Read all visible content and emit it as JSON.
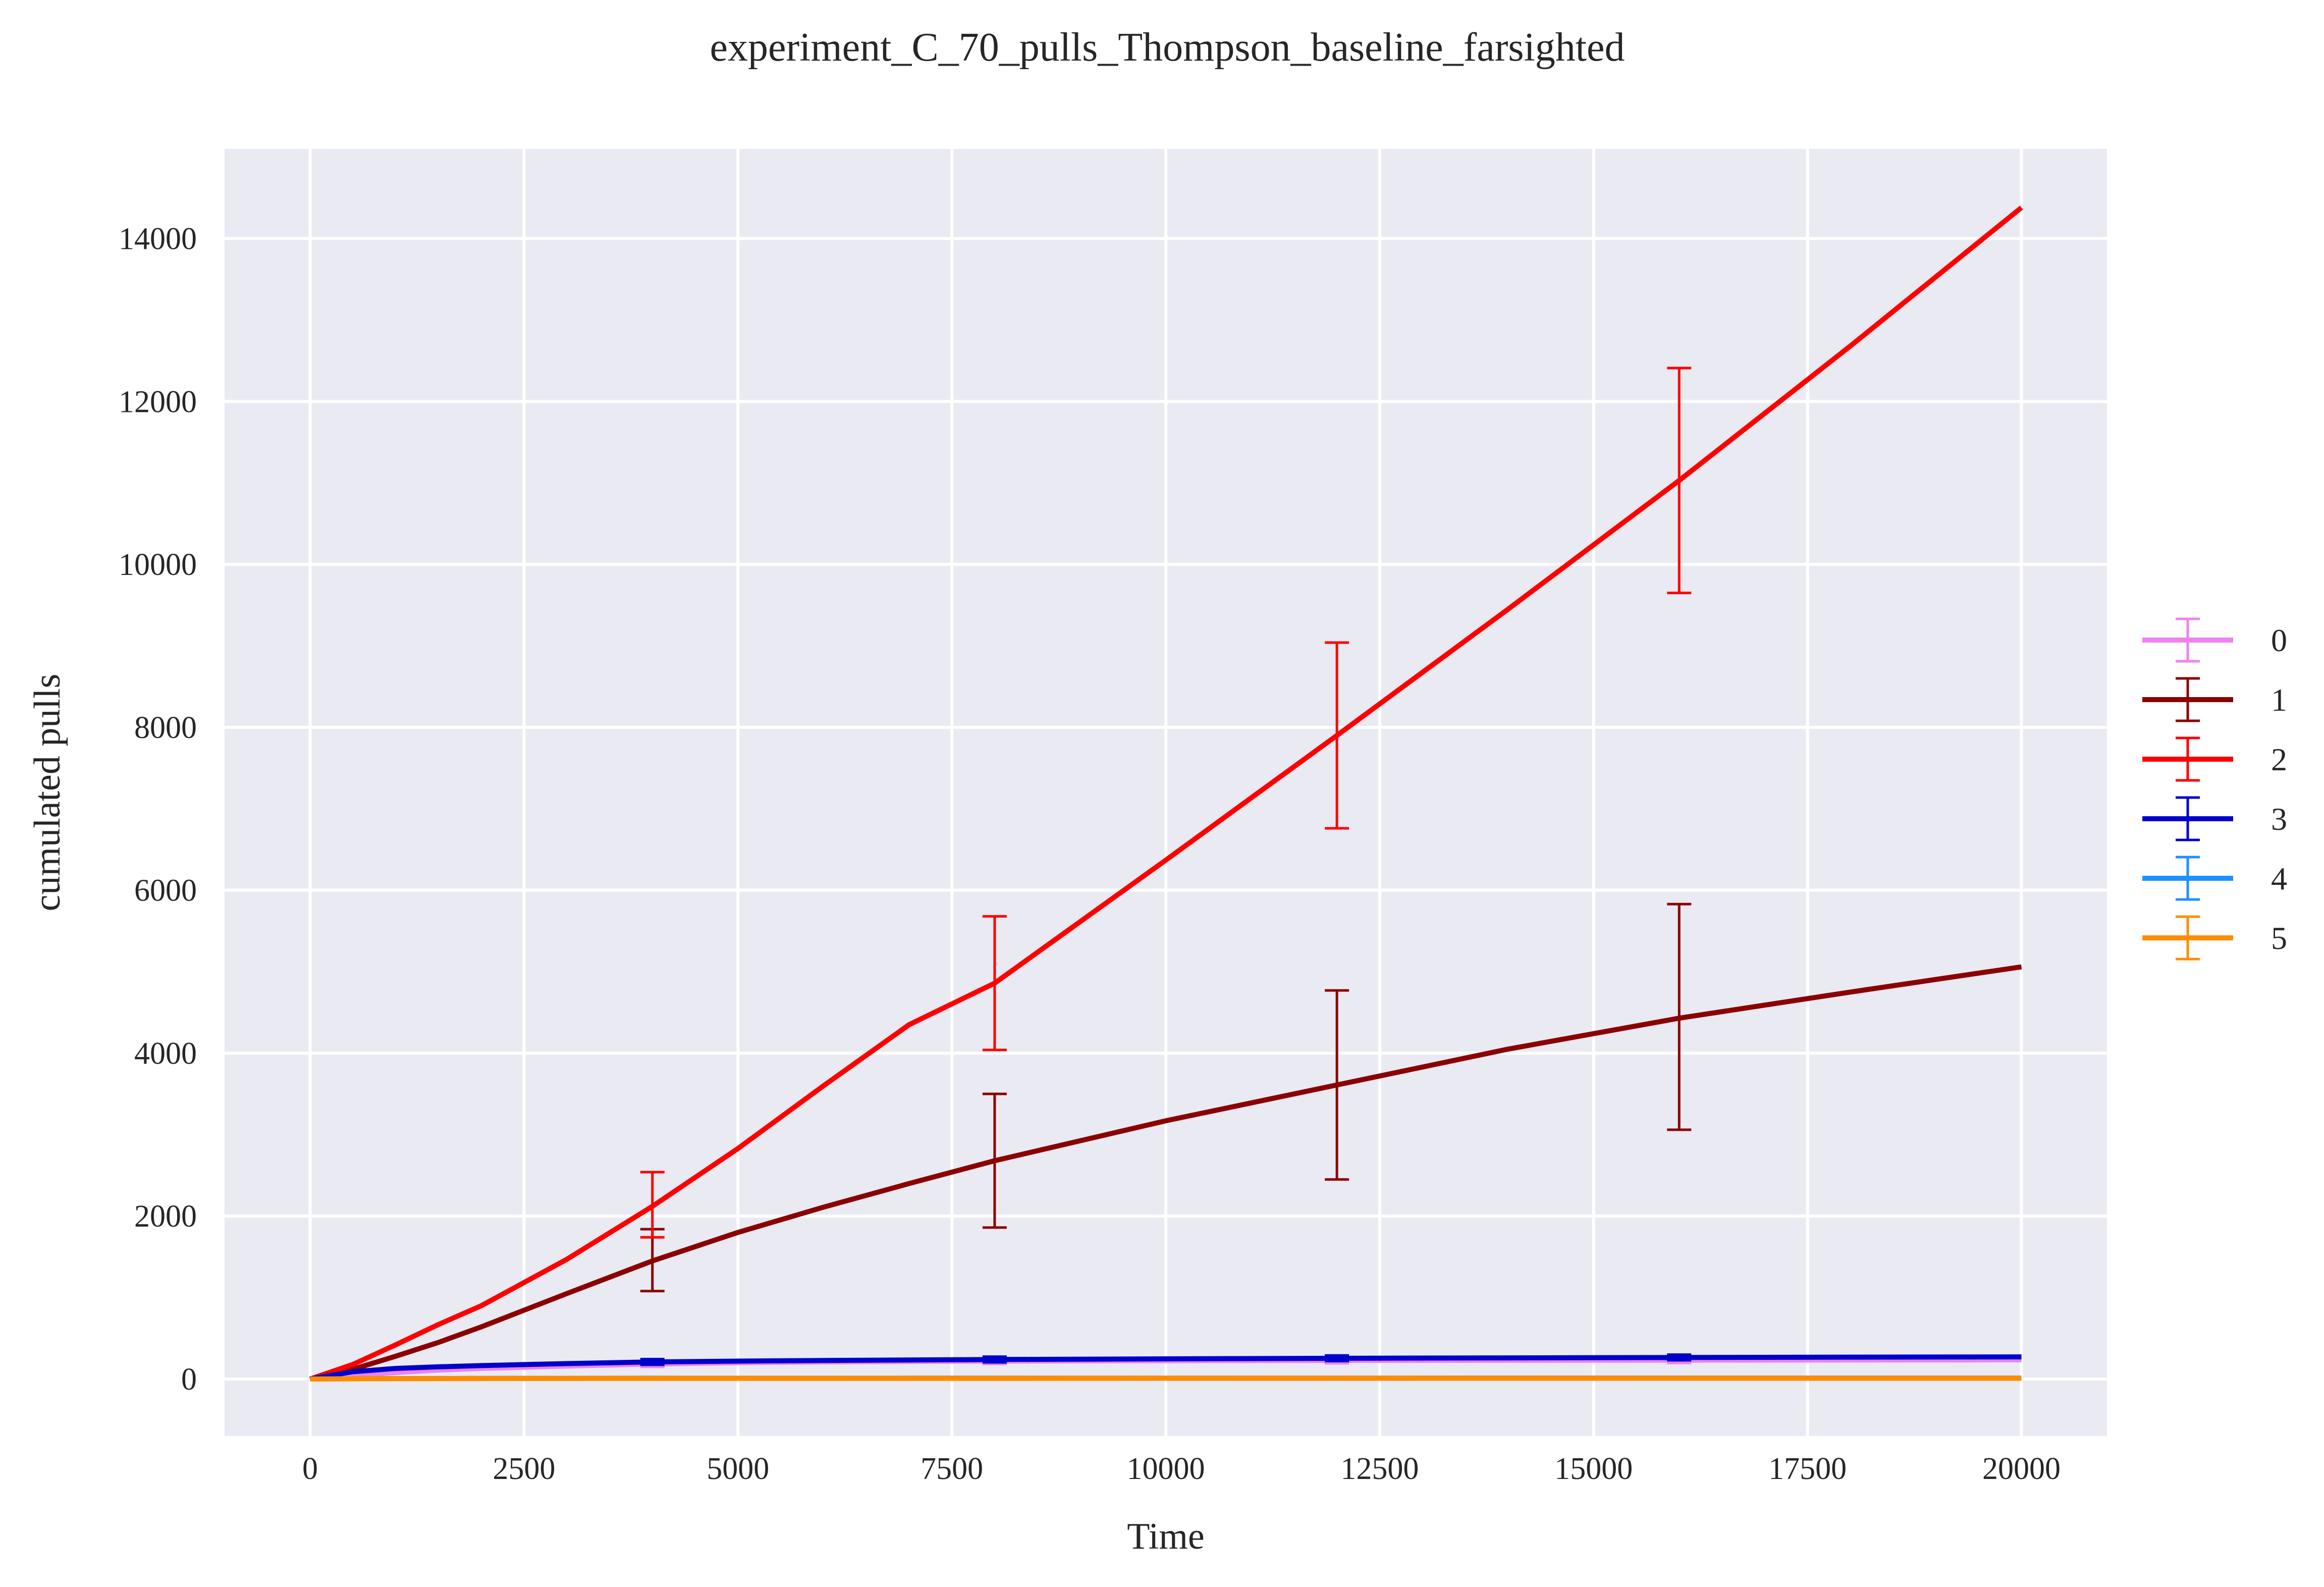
{
  "chart_data": {
    "type": "line",
    "title": "experiment_C_70_pulls_Thompson_baseline_farsighted",
    "xlabel": "Time",
    "ylabel": "cumulated pulls",
    "xlim": [
      -1000,
      21000
    ],
    "ylim": [
      -700,
      15100
    ],
    "xticks": [
      0,
      2500,
      5000,
      7500,
      10000,
      12500,
      15000,
      17500,
      20000
    ],
    "yticks": [
      0,
      2000,
      4000,
      6000,
      8000,
      10000,
      12000,
      14000
    ],
    "grid": true,
    "legend_position": "right",
    "x": [
      0,
      500,
      1000,
      1500,
      2000,
      3000,
      4000,
      5000,
      6000,
      7000,
      8000,
      10000,
      12000,
      14000,
      16000,
      18000,
      20000
    ],
    "series": [
      {
        "name": "0",
        "color": "#ee82ee",
        "values": [
          0,
          40,
          80,
          110,
          130,
          160,
          185,
          200,
          210,
          215,
          220,
          225,
          228,
          230,
          232,
          234,
          236
        ],
        "errorbars": [
          {
            "x": 4000,
            "y": 185,
            "low": 150,
            "high": 220
          },
          {
            "x": 8000,
            "y": 220,
            "low": 185,
            "high": 255
          },
          {
            "x": 12000,
            "y": 228,
            "low": 193,
            "high": 263
          },
          {
            "x": 16000,
            "y": 232,
            "low": 197,
            "high": 267
          }
        ]
      },
      {
        "name": "1",
        "color": "#8b0000",
        "values": [
          0,
          120,
          280,
          450,
          640,
          1050,
          1450,
          1800,
          2110,
          2400,
          2680,
          3170,
          3610,
          4050,
          4430,
          4750,
          5060
        ],
        "errorbars": [
          {
            "x": 4000,
            "y": 1450,
            "low": 1080,
            "high": 1840
          },
          {
            "x": 8000,
            "y": 2680,
            "low": 1860,
            "high": 3500
          },
          {
            "x": 12000,
            "y": 3610,
            "low": 2450,
            "high": 4770
          },
          {
            "x": 16000,
            "y": 4430,
            "low": 3060,
            "high": 5830
          }
        ]
      },
      {
        "name": "2",
        "color": "#ff0000",
        "values": [
          0,
          180,
          420,
          670,
          900,
          1470,
          2120,
          2830,
          3600,
          4350,
          4860,
          6370,
          7900,
          9450,
          11030,
          12680,
          14380
        ],
        "errorbars": [
          {
            "x": 4000,
            "y": 2120,
            "low": 1740,
            "high": 2540
          },
          {
            "x": 8000,
            "y": 4860,
            "low": 4040,
            "high": 5680
          },
          {
            "x": 12000,
            "y": 7900,
            "low": 6760,
            "high": 9040
          },
          {
            "x": 16000,
            "y": 11030,
            "low": 9650,
            "high": 12410
          }
        ]
      },
      {
        "name": "3",
        "color": "#0000cd",
        "values": [
          0,
          90,
          130,
          150,
          165,
          190,
          210,
          220,
          228,
          234,
          240,
          248,
          255,
          260,
          265,
          269,
          272
        ],
        "errorbars": [
          {
            "x": 4000,
            "y": 210,
            "low": 175,
            "high": 245
          },
          {
            "x": 8000,
            "y": 240,
            "low": 205,
            "high": 275
          },
          {
            "x": 12000,
            "y": 255,
            "low": 220,
            "high": 290
          },
          {
            "x": 16000,
            "y": 265,
            "low": 230,
            "high": 300
          }
        ]
      },
      {
        "name": "4",
        "color": "#1e90ff",
        "values": [
          0,
          4,
          6,
          7,
          8,
          9,
          10,
          10,
          10,
          11,
          11,
          11,
          11,
          12,
          12,
          12,
          12
        ],
        "errorbars": [
          {
            "x": 4000,
            "y": 10,
            "low": 5,
            "high": 15
          },
          {
            "x": 8000,
            "y": 11,
            "low": 6,
            "high": 16
          },
          {
            "x": 12000,
            "y": 11,
            "low": 6,
            "high": 16
          },
          {
            "x": 16000,
            "y": 12,
            "low": 7,
            "high": 17
          }
        ]
      },
      {
        "name": "5",
        "color": "#ff8c00",
        "values": [
          0,
          3,
          5,
          6,
          7,
          8,
          8,
          9,
          9,
          9,
          9,
          10,
          10,
          10,
          10,
          10,
          10
        ],
        "errorbars": [
          {
            "x": 4000,
            "y": 8,
            "low": 4,
            "high": 12
          },
          {
            "x": 8000,
            "y": 9,
            "low": 5,
            "high": 13
          },
          {
            "x": 12000,
            "y": 10,
            "low": 6,
            "high": 14
          },
          {
            "x": 16000,
            "y": 10,
            "low": 6,
            "high": 14
          }
        ]
      }
    ]
  }
}
